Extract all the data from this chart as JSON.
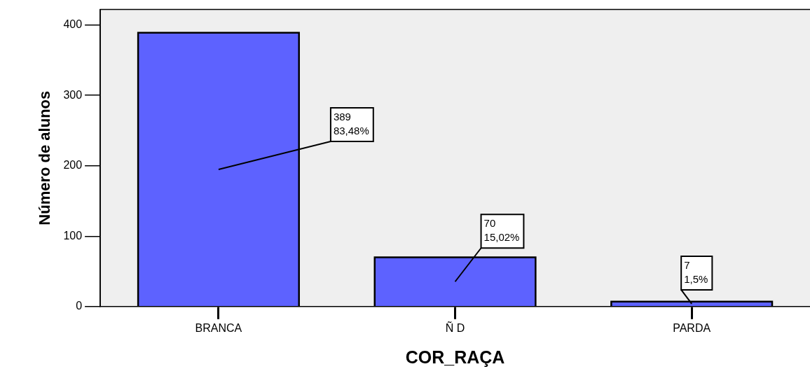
{
  "chart_data": {
    "type": "bar",
    "xlabel": "COR_RAÇA",
    "ylabel": "Número de alunos",
    "categories": [
      "BRANCA",
      "Ñ D",
      "PARDA"
    ],
    "values": [
      389,
      70,
      7
    ],
    "color": "#5d62ff",
    "value_labels": [
      "389\n83,48%",
      "70\n15,02%",
      "7\n1,5%"
    ],
    "ylim": [
      0,
      422
    ],
    "yticks": [
      0,
      100,
      200,
      300,
      400
    ],
    "grid": false,
    "legend": false
  }
}
